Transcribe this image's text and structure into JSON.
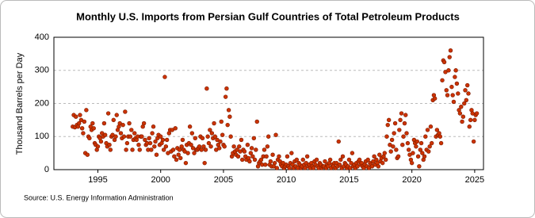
{
  "chart_data": {
    "type": "scatter",
    "title": "Monthly U.S. Imports from Persian Gulf Countries of Total Petroleum Products",
    "y_label": "Thousand Barrels per Day",
    "source": "Source: U.S. Energy Information Administration",
    "color": "#cc3300",
    "grid": true,
    "xlim": [
      1991.5,
      2025.7
    ],
    "xticks": [
      1995,
      2000,
      2005,
      2010,
      2015,
      2020,
      2025
    ],
    "ylim": [
      0,
      400
    ],
    "yticks": [
      0,
      100,
      200,
      300,
      400
    ],
    "x": [
      1993,
      1993.08,
      1993.17,
      1993.25,
      1993.33,
      1993.42,
      1993.5,
      1993.58,
      1993.67,
      1993.75,
      1993.83,
      1993.92,
      1994,
      1994.08,
      1994.17,
      1994.25,
      1994.33,
      1994.42,
      1994.5,
      1994.58,
      1994.67,
      1994.75,
      1994.83,
      1994.92,
      1995,
      1995.08,
      1995.17,
      1995.25,
      1995.33,
      1995.42,
      1995.5,
      1995.58,
      1995.67,
      1995.75,
      1995.83,
      1995.92,
      1996,
      1996.08,
      1996.17,
      1996.25,
      1996.33,
      1996.42,
      1996.5,
      1996.58,
      1996.67,
      1996.75,
      1996.83,
      1996.92,
      1997,
      1997.08,
      1997.17,
      1997.25,
      1997.33,
      1997.42,
      1997.5,
      1997.58,
      1997.67,
      1997.75,
      1997.83,
      1997.92,
      1998,
      1998.08,
      1998.17,
      1998.25,
      1998.33,
      1998.42,
      1998.5,
      1998.58,
      1998.67,
      1998.75,
      1998.83,
      1998.92,
      1999,
      1999.08,
      1999.17,
      1999.25,
      1999.33,
      1999.42,
      1999.5,
      1999.58,
      1999.67,
      1999.75,
      1999.83,
      1999.92,
      2000,
      2000.08,
      2000.17,
      2000.25,
      2000.33,
      2000.42,
      2000.5,
      2000.58,
      2000.67,
      2000.75,
      2000.83,
      2000.92,
      2001,
      2001.08,
      2001.17,
      2001.25,
      2001.33,
      2001.42,
      2001.5,
      2001.58,
      2001.67,
      2001.75,
      2001.83,
      2001.92,
      2002,
      2002.08,
      2002.17,
      2002.25,
      2002.33,
      2002.42,
      2002.5,
      2002.58,
      2002.67,
      2002.75,
      2002.83,
      2002.92,
      2003,
      2003.08,
      2003.17,
      2003.25,
      2003.33,
      2003.42,
      2003.5,
      2003.58,
      2003.67,
      2003.75,
      2003.83,
      2003.92,
      2004,
      2004.08,
      2004.17,
      2004.25,
      2004.33,
      2004.42,
      2004.5,
      2004.58,
      2004.67,
      2004.75,
      2004.83,
      2004.92,
      2005,
      2005.08,
      2005.17,
      2005.25,
      2005.33,
      2005.42,
      2005.5,
      2005.58,
      2005.67,
      2005.75,
      2005.83,
      2005.92,
      2006,
      2006.08,
      2006.17,
      2006.25,
      2006.33,
      2006.42,
      2006.5,
      2006.58,
      2006.67,
      2006.75,
      2006.83,
      2006.92,
      2007,
      2007.08,
      2007.17,
      2007.25,
      2007.33,
      2007.42,
      2007.5,
      2007.58,
      2007.67,
      2007.75,
      2007.83,
      2007.92,
      2008,
      2008.08,
      2008.17,
      2008.25,
      2008.33,
      2008.42,
      2008.5,
      2008.58,
      2008.67,
      2008.75,
      2008.83,
      2008.92,
      2009,
      2009.08,
      2009.17,
      2009.25,
      2009.33,
      2009.42,
      2009.5,
      2009.58,
      2009.67,
      2009.75,
      2009.83,
      2009.92,
      2010,
      2010.08,
      2010.17,
      2010.25,
      2010.33,
      2010.42,
      2010.5,
      2010.58,
      2010.67,
      2010.75,
      2010.83,
      2010.92,
      2011,
      2011.08,
      2011.17,
      2011.25,
      2011.33,
      2011.42,
      2011.5,
      2011.58,
      2011.67,
      2011.75,
      2011.83,
      2011.92,
      2012,
      2012.08,
      2012.17,
      2012.25,
      2012.33,
      2012.42,
      2012.5,
      2012.58,
      2012.67,
      2012.75,
      2012.83,
      2012.92,
      2013,
      2013.08,
      2013.17,
      2013.25,
      2013.33,
      2013.42,
      2013.5,
      2013.58,
      2013.67,
      2013.75,
      2013.83,
      2013.92,
      2014,
      2014.08,
      2014.17,
      2014.25,
      2014.33,
      2014.42,
      2014.5,
      2014.58,
      2014.67,
      2014.75,
      2014.83,
      2014.92,
      2015,
      2015.08,
      2015.17,
      2015.25,
      2015.33,
      2015.42,
      2015.5,
      2015.58,
      2015.67,
      2015.75,
      2015.83,
      2015.92,
      2016,
      2016.08,
      2016.17,
      2016.25,
      2016.33,
      2016.42,
      2016.5,
      2016.58,
      2016.67,
      2016.75,
      2016.83,
      2016.92,
      2017,
      2017.08,
      2017.17,
      2017.25,
      2017.33,
      2017.42,
      2017.5,
      2017.58,
      2017.67,
      2017.75,
      2017.83,
      2017.92,
      2018,
      2018.08,
      2018.17,
      2018.25,
      2018.33,
      2018.42,
      2018.5,
      2018.58,
      2018.67,
      2018.75,
      2018.83,
      2018.92,
      2019,
      2019.08,
      2019.17,
      2019.25,
      2019.33,
      2019.42,
      2019.5,
      2019.58,
      2019.67,
      2019.75,
      2019.83,
      2019.92,
      2020,
      2020.08,
      2020.17,
      2020.25,
      2020.33,
      2020.42,
      2020.5,
      2020.58,
      2020.67,
      2020.75,
      2020.83,
      2020.92,
      2021,
      2021.08,
      2021.17,
      2021.25,
      2021.33,
      2021.42,
      2021.5,
      2021.58,
      2021.67,
      2021.75,
      2021.83,
      2021.92,
      2022,
      2022.08,
      2022.17,
      2022.25,
      2022.33,
      2022.42,
      2022.5,
      2022.58,
      2022.67,
      2022.75,
      2022.83,
      2022.92,
      2023,
      2023.08,
      2023.17,
      2023.25,
      2023.33,
      2023.42,
      2023.5,
      2023.58,
      2023.67,
      2023.75,
      2023.83,
      2023.92,
      2024,
      2024.08,
      2024.17,
      2024.25,
      2024.33,
      2024.42,
      2024.5,
      2024.58,
      2024.67,
      2024.75,
      2024.83,
      2024.92,
      2025,
      2025.08,
      2025.17
    ],
    "values": [
      130,
      165,
      128,
      160,
      135,
      130,
      140,
      165,
      150,
      125,
      110,
      145,
      50,
      180,
      45,
      100,
      95,
      130,
      120,
      140,
      125,
      80,
      75,
      60,
      70,
      100,
      95,
      85,
      110,
      100,
      140,
      105,
      80,
      70,
      170,
      75,
      60,
      100,
      105,
      150,
      90,
      100,
      165,
      120,
      130,
      140,
      110,
      95,
      135,
      100,
      175,
      60,
      80,
      100,
      140,
      100,
      120,
      60,
      90,
      110,
      95,
      90,
      100,
      75,
      60,
      100,
      100,
      130,
      140,
      90,
      75,
      80,
      60,
      95,
      80,
      60,
      110,
      130,
      70,
      85,
      45,
      95,
      105,
      75,
      100,
      80,
      90,
      60,
      280,
      70,
      90,
      50,
      110,
      120,
      55,
      120,
      60,
      40,
      125,
      30,
      65,
      45,
      60,
      35,
      70,
      90,
      60,
      55,
      20,
      75,
      50,
      80,
      130,
      75,
      110,
      65,
      50,
      95,
      60,
      60,
      65,
      70,
      100,
      60,
      95,
      70,
      20,
      60,
      245,
      100,
      80,
      120,
      70,
      110,
      95,
      140,
      100,
      60,
      90,
      75,
      65,
      85,
      145,
      105,
      75,
      70,
      220,
      245,
      135,
      180,
      160,
      100,
      40,
      50,
      70,
      55,
      45,
      60,
      40,
      70,
      55,
      90,
      30,
      60,
      55,
      40,
      30,
      75,
      35,
      25,
      50,
      65,
      40,
      95,
      30,
      60,
      145,
      10,
      20,
      25,
      30,
      15,
      40,
      60,
      15,
      40,
      70,
      100,
      15,
      25,
      10,
      45,
      10,
      20,
      105,
      5,
      30,
      40,
      25,
      15,
      10,
      20,
      5,
      10,
      15,
      40,
      10,
      5,
      20,
      50,
      15,
      5,
      25,
      10,
      30,
      5,
      20,
      15,
      5,
      10,
      30,
      15,
      5,
      20,
      40,
      10,
      15,
      5,
      20,
      10,
      5,
      25,
      15,
      30,
      10,
      5,
      20,
      15,
      5,
      10,
      10,
      25,
      5,
      15,
      10,
      20,
      30,
      5,
      15,
      10,
      20,
      5,
      20,
      10,
      85,
      15,
      30,
      5,
      40,
      10,
      20,
      15,
      5,
      10,
      30,
      5,
      20,
      50,
      10,
      15,
      5,
      20,
      10,
      25,
      30,
      15,
      20,
      10,
      5,
      15,
      25,
      10,
      30,
      5,
      20,
      15,
      10,
      25,
      40,
      15,
      30,
      20,
      10,
      45,
      25,
      35,
      20,
      40,
      50,
      30,
      100,
      135,
      150,
      75,
      55,
      90,
      70,
      110,
      140,
      60,
      35,
      40,
      120,
      150,
      170,
      75,
      100,
      140,
      165,
      110,
      80,
      60,
      45,
      30,
      20,
      50,
      90,
      80,
      70,
      85,
      40,
      10,
      60,
      80,
      50,
      30,
      40,
      100,
      60,
      120,
      55,
      70,
      130,
      80,
      210,
      225,
      215,
      100,
      120,
      105,
      110,
      100,
      80,
      270,
      330,
      325,
      295,
      240,
      225,
      300,
      340,
      360,
      250,
      225,
      205,
      280,
      300,
      260,
      230,
      180,
      170,
      190,
      145,
      160,
      200,
      240,
      210,
      255,
      230,
      130,
      150,
      180,
      170,
      85,
      150,
      165,
      170
    ]
  }
}
